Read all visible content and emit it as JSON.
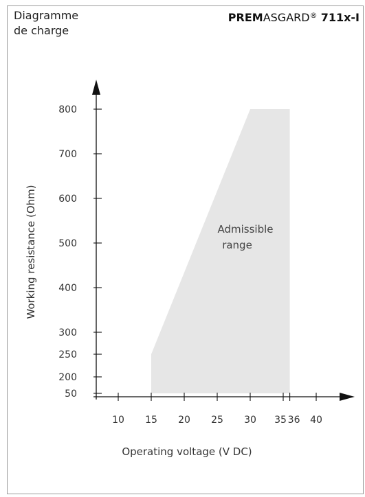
{
  "header": {
    "title_line1": "Diagramme",
    "title_line2": "de charge",
    "product_bold_1": "PREM",
    "product_regular": "ASGARD",
    "product_reg_mark": "®",
    "product_bold_2": "711x-I"
  },
  "chart_data": {
    "type": "area",
    "xlabel": "Operating voltage  (V DC)",
    "ylabel": "Working resistance  (Ohm)",
    "x_ticks": [
      "10",
      "15",
      "20",
      "25",
      "30",
      "35",
      "36",
      "40"
    ],
    "x_tick_values": [
      10,
      15,
      20,
      25,
      30,
      35,
      36,
      40
    ],
    "y_ticks": [
      "50",
      "200",
      "250",
      "300",
      "400",
      "500",
      "600",
      "700",
      "800"
    ],
    "y_tick_values": [
      50,
      200,
      250,
      300,
      400,
      500,
      600,
      700,
      800
    ],
    "region": {
      "label_line1": "Admissible",
      "label_line2": "range",
      "polygon": [
        {
          "x": 15,
          "y": 50
        },
        {
          "x": 15,
          "y": 250
        },
        {
          "x": 30,
          "y": 800
        },
        {
          "x": 36,
          "y": 800
        },
        {
          "x": 36,
          "y": 50
        }
      ],
      "color": "#e6e6e6"
    },
    "axis_color": "#111111",
    "grid": false
  }
}
